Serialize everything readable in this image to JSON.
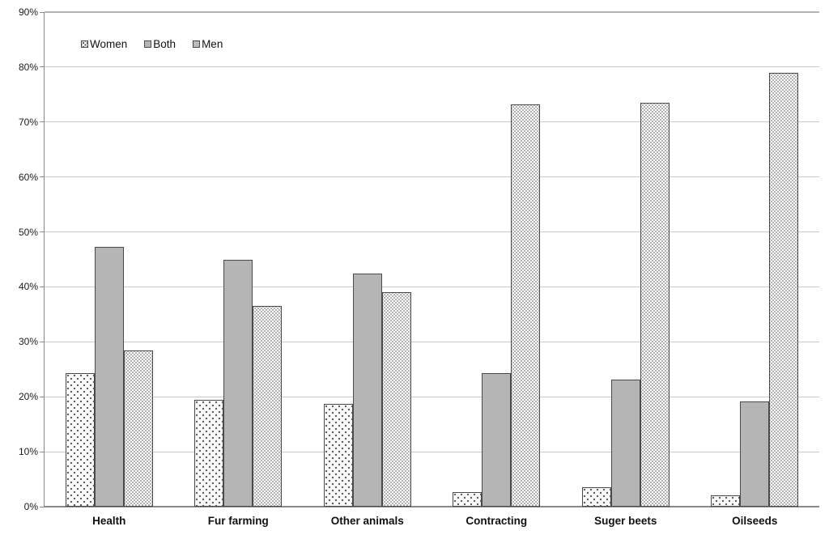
{
  "chart_data": {
    "type": "bar",
    "title": "",
    "categories": [
      "Health",
      "Fur farming",
      "Other animals",
      "Contracting",
      "Suger beets",
      "Oilseeds"
    ],
    "series": [
      {
        "name": "Women",
        "pattern": "sparse-dots",
        "values": [
          24.3,
          19.4,
          18.7,
          2.7,
          3.5,
          2.1
        ]
      },
      {
        "name": "Both",
        "pattern": "solid-gray",
        "values": [
          47.3,
          44.9,
          42.4,
          24.3,
          23.2,
          19.1
        ]
      },
      {
        "name": "Men",
        "pattern": "dense-dots",
        "values": [
          28.4,
          36.6,
          39.0,
          73.2,
          73.5,
          79.0
        ]
      }
    ],
    "xlabel": "",
    "ylabel": "",
    "ylim": [
      0,
      90
    ],
    "ytick_step": 10,
    "ytick_labels": [
      "0%",
      "10%",
      "20%",
      "30%",
      "40%",
      "50%",
      "60%",
      "70%",
      "80%",
      "90%"
    ],
    "grid": true,
    "legend_position": "top-left-inside"
  },
  "colors": {
    "both_fill": "#b5b5b5",
    "bar_border": "#4a4a4a",
    "gridline": "#c9c9c9",
    "axis_line": "#8a8a8a",
    "background": "#ffffff"
  }
}
